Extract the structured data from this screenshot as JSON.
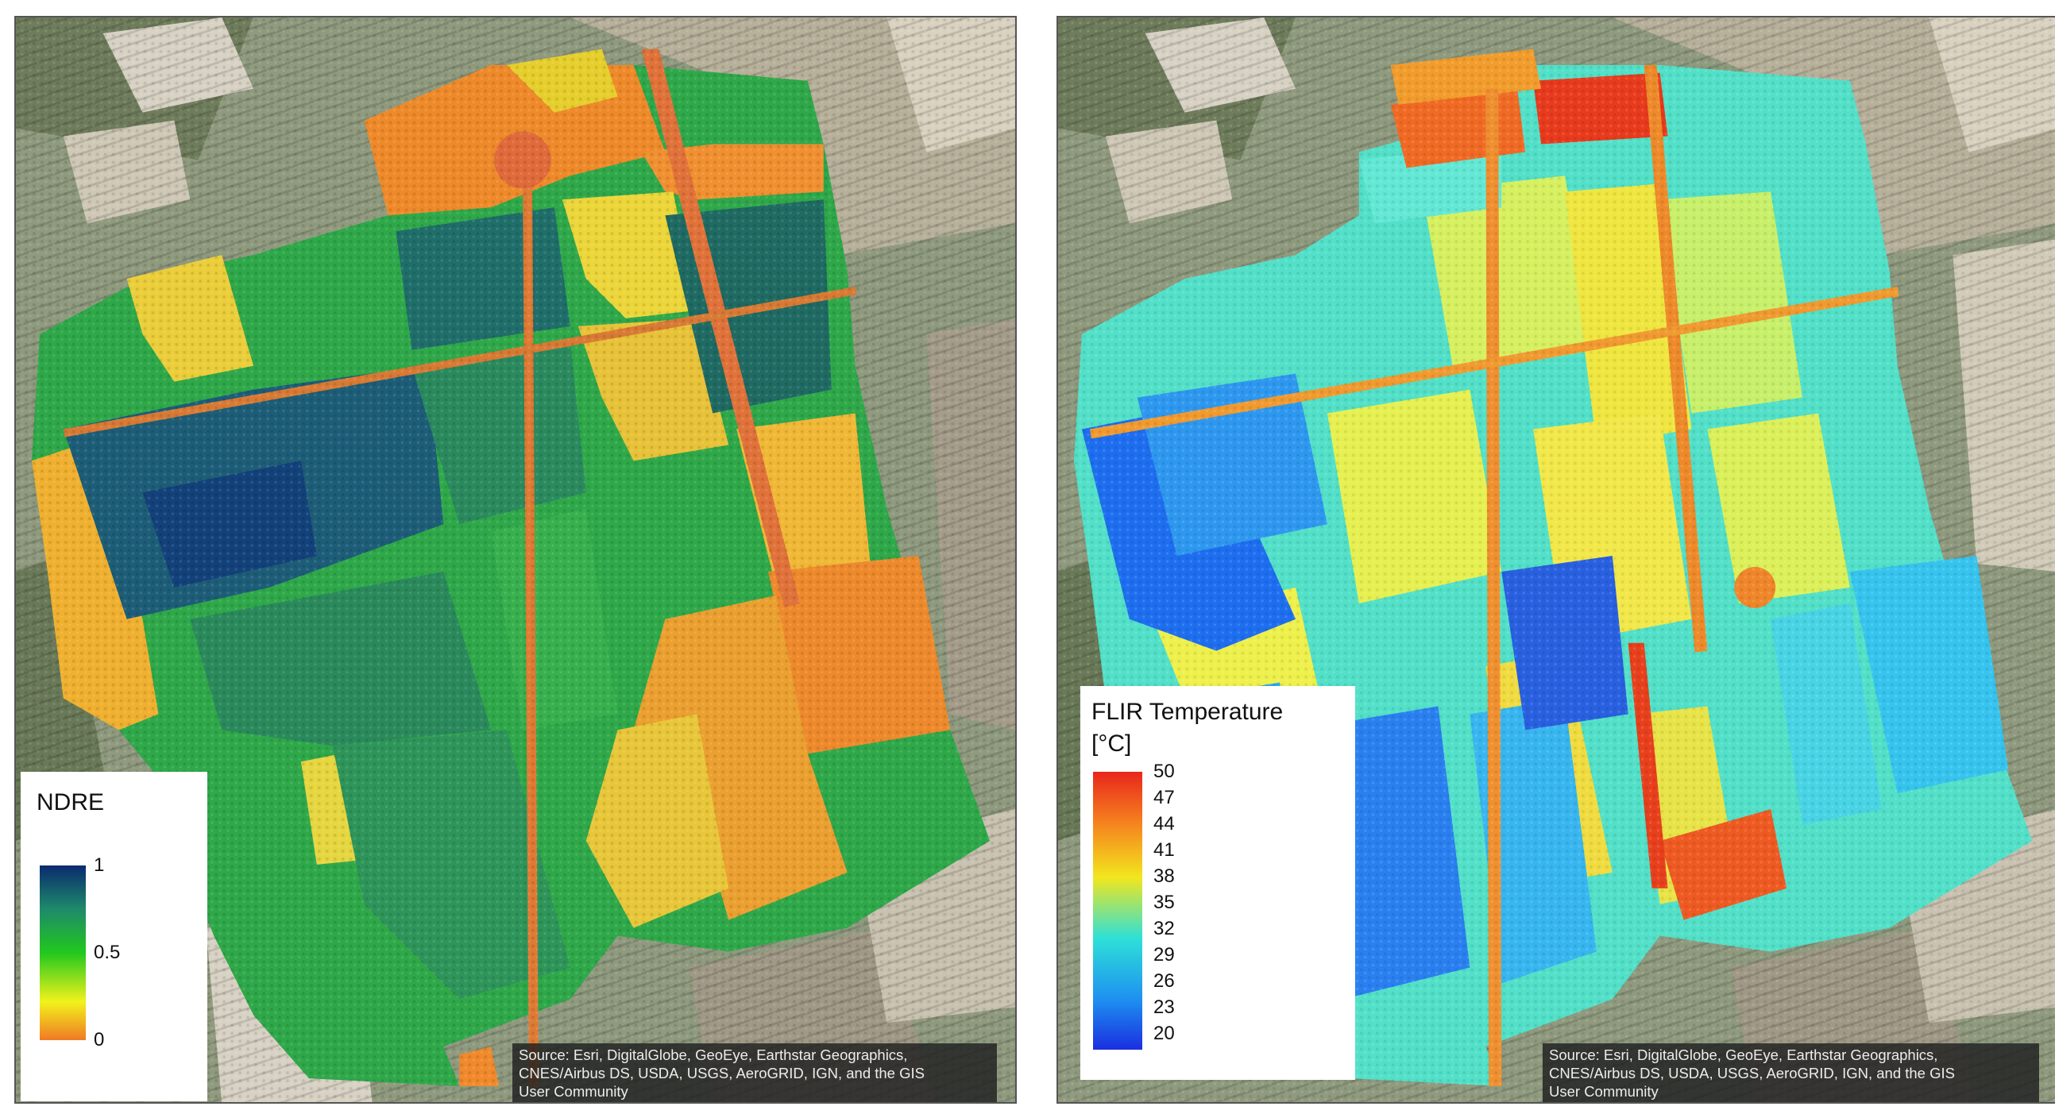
{
  "ndre_map": {
    "legend": {
      "title": "NDRE",
      "ticks": [
        "1",
        "0.5",
        "0"
      ],
      "colors": [
        "#0a2a6e",
        "#1e8a6a",
        "#22c81e",
        "#f2f21c",
        "#f07a24"
      ]
    },
    "attribution": {
      "line1": "Source: Esri, DigitalGlobe, GeoEye, Earthstar Geographics,",
      "line2": "CNES/Airbus DS, USDA, USGS, AeroGRID, IGN, and the GIS",
      "line3": "User Community"
    }
  },
  "flir_map": {
    "legend": {
      "title_line1": "FLIR Temperature",
      "title_line2": "[°C]",
      "ticks": [
        "50",
        "47",
        "44",
        "41",
        "38",
        "35",
        "32",
        "29",
        "26",
        "23",
        "20"
      ],
      "colors": [
        "#e8261c",
        "#f5801e",
        "#f2e61e",
        "#2ee0d8",
        "#1e90f0",
        "#1a2ee0"
      ]
    },
    "attribution": {
      "line1": "Source: Esri, DigitalGlobe, GeoEye, Earthstar Geographics,",
      "line2": "CNES/Airbus DS, USDA, USGS, AeroGRID, IGN, and the GIS",
      "line3": "User Community"
    }
  },
  "colors": {
    "basemap_field": "#9aa58a",
    "basemap_light": "#d8d2c4",
    "basemap_dark": "#5e6e4e",
    "road": "#d06a30"
  }
}
